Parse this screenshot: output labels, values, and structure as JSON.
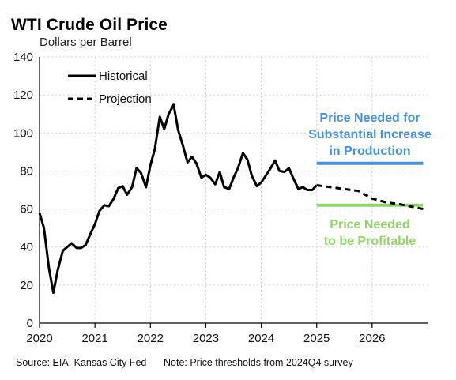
{
  "chart_data": {
    "type": "line",
    "title": "WTI Crude Oil Price",
    "subtitle": "Dollars per Barrel",
    "ylim": [
      0,
      140
    ],
    "yticks": [
      0,
      20,
      40,
      60,
      80,
      100,
      120,
      140
    ],
    "xlim": [
      2020,
      2027
    ],
    "xticks": [
      2020,
      2021,
      2022,
      2023,
      2024,
      2025,
      2026
    ],
    "series": [
      {
        "name": "Historical",
        "style": "solid",
        "color": "#000000",
        "x": [
          2020.0,
          2020.08,
          2020.17,
          2020.25,
          2020.33,
          2020.42,
          2020.5,
          2020.58,
          2020.67,
          2020.75,
          2020.83,
          2020.92,
          2021.0,
          2021.08,
          2021.17,
          2021.25,
          2021.33,
          2021.42,
          2021.5,
          2021.58,
          2021.67,
          2021.75,
          2021.83,
          2021.92,
          2022.0,
          2022.08,
          2022.17,
          2022.25,
          2022.33,
          2022.42,
          2022.5,
          2022.58,
          2022.67,
          2022.75,
          2022.83,
          2022.92,
          2023.0,
          2023.08,
          2023.17,
          2023.25,
          2023.33,
          2023.42,
          2023.5,
          2023.58,
          2023.67,
          2023.75,
          2023.83,
          2023.92,
          2024.0,
          2024.08,
          2024.17,
          2024.25,
          2024.33,
          2024.42,
          2024.5,
          2024.58,
          2024.67,
          2024.75,
          2024.83,
          2024.92,
          2025.0
        ],
        "values": [
          58,
          50,
          29,
          16,
          28,
          38,
          40,
          42,
          39.5,
          39.5,
          41,
          47,
          52,
          59,
          62,
          61.5,
          65,
          71,
          72,
          67.5,
          71.5,
          81.5,
          79,
          71.5,
          83,
          91.5,
          108.5,
          102,
          110,
          114.8,
          101.5,
          94,
          84.5,
          87.5,
          84,
          76.5,
          78,
          76.5,
          73,
          79.5,
          71.5,
          70.5,
          76.5,
          81.5,
          89.5,
          86,
          77.5,
          72,
          74,
          77.5,
          81.5,
          85.5,
          80,
          79.5,
          81.5,
          76,
          70.5,
          71.5,
          70,
          70,
          72.5
        ]
      },
      {
        "name": "Projection",
        "style": "dashed",
        "color": "#000000",
        "x": [
          2025.0,
          2025.25,
          2025.5,
          2025.75,
          2026.0,
          2026.25,
          2026.5,
          2026.75,
          2026.92
        ],
        "values": [
          72.5,
          71.5,
          70.5,
          69.5,
          65.5,
          63.5,
          62.5,
          61,
          60
        ]
      }
    ],
    "reference_lines": [
      {
        "label": [
          "Price Needed for",
          "Substantial Increase",
          "in Production"
        ],
        "value": 84,
        "x_start": 2025.0,
        "x_end": 2026.92,
        "color": "#4a90d2"
      },
      {
        "label": [
          "Price Needed",
          "to be Profitable"
        ],
        "value": 62,
        "x_start": 2025.0,
        "x_end": 2026.92,
        "color": "#92d36e"
      }
    ],
    "legend": {
      "placement": "top-left",
      "entries": [
        "Historical",
        "Projection"
      ]
    },
    "grid": {
      "x": true,
      "y": true,
      "style": "dotted"
    }
  },
  "footer": {
    "source": "Source: EIA, Kansas City Fed",
    "note": "Note: Price thresholds from 2024Q4 survey"
  }
}
